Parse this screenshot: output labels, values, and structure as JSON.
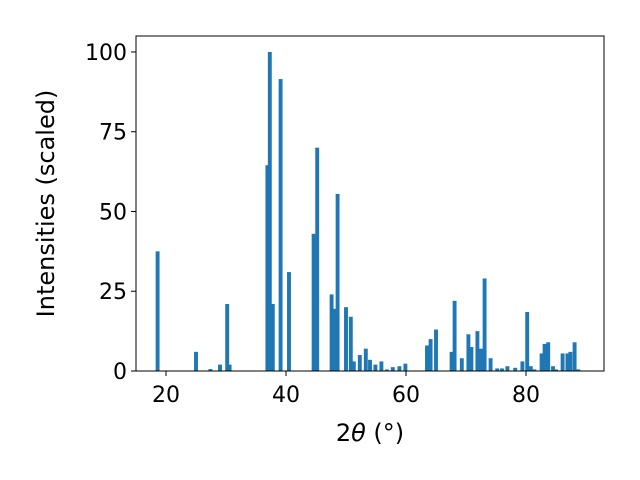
{
  "chart_data": {
    "type": "bar",
    "xlabel_main": "2",
    "xlabel_theta": "θ",
    "xlabel_unit": " (°)",
    "ylabel": "Intensities (scaled)",
    "xlim": [
      15,
      93
    ],
    "ylim": [
      0,
      105
    ],
    "x_ticks": [
      20,
      40,
      60,
      80
    ],
    "y_ticks": [
      0,
      25,
      50,
      75,
      100
    ],
    "bar_width": 0.65,
    "bar_color": "#1f77b4",
    "grid": false,
    "x": [
      18.6,
      25.0,
      27.4,
      29.0,
      30.2,
      30.6,
      36.9,
      37.3,
      37.8,
      39.1,
      40.5,
      44.6,
      45.2,
      47.6,
      48.0,
      48.6,
      50.0,
      50.8,
      51.3,
      52.3,
      53.3,
      54.0,
      54.9,
      55.9,
      56.8,
      57.8,
      58.9,
      59.9,
      63.5,
      64.1,
      65.0,
      67.6,
      68.1,
      69.3,
      70.4,
      70.9,
      71.9,
      72.5,
      73.1,
      74.1,
      75.2,
      76.0,
      76.9,
      78.2,
      79.4,
      80.2,
      80.8,
      81.4,
      82.6,
      83.1,
      83.7,
      84.5,
      85.0,
      86.1,
      86.9,
      87.4,
      88.1,
      88.7
    ],
    "values": [
      37.5,
      6.0,
      0.6,
      2.0,
      21.0,
      2.0,
      64.5,
      100.0,
      21.0,
      91.5,
      31.0,
      43.0,
      70.0,
      24.0,
      19.5,
      55.5,
      20.0,
      17.0,
      3.0,
      5.0,
      7.0,
      3.5,
      2.0,
      3.0,
      0.5,
      1.2,
      1.5,
      2.3,
      8.0,
      10.0,
      13.0,
      6.0,
      22.0,
      4.0,
      11.5,
      7.5,
      12.5,
      7.0,
      29.0,
      4.0,
      0.8,
      0.8,
      1.5,
      1.0,
      3.0,
      18.5,
      1.5,
      0.5,
      5.5,
      8.5,
      9.0,
      1.5,
      0.5,
      5.5,
      5.5,
      6.0,
      9.0,
      0.5
    ]
  }
}
